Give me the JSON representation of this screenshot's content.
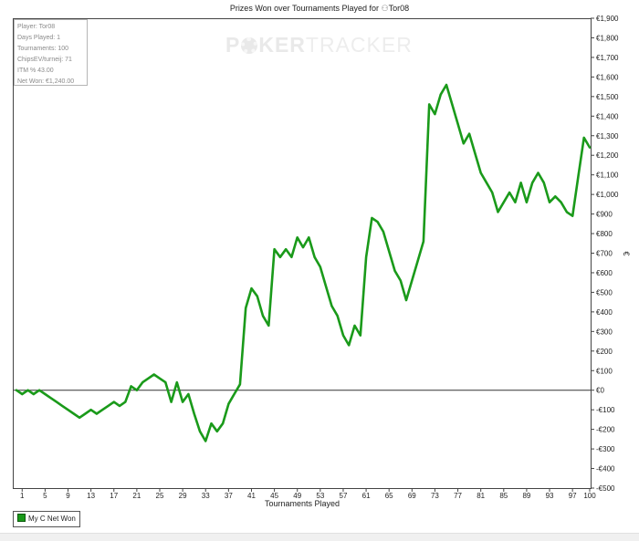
{
  "chart_data": {
    "type": "line",
    "title_prefix": "Prizes Won over Tournaments Played for",
    "title_player": "Tor08",
    "xlabel": "Tournaments Played",
    "ylabel": "€",
    "xlim": [
      0,
      100
    ],
    "ylim": [
      -500,
      1900
    ],
    "x_ticks": [
      1,
      5,
      9,
      13,
      17,
      21,
      25,
      29,
      33,
      37,
      41,
      45,
      49,
      53,
      57,
      61,
      65,
      69,
      73,
      77,
      81,
      85,
      89,
      93,
      97,
      100
    ],
    "y_ticks": [
      -500,
      -400,
      -300,
      -200,
      -100,
      0,
      100,
      200,
      300,
      400,
      500,
      600,
      700,
      800,
      900,
      1000,
      1100,
      1200,
      1300,
      1400,
      1500,
      1600,
      1700,
      1800,
      1900
    ],
    "y_tick_labels": [
      "-€500",
      "-€400",
      "-€300",
      "-€200",
      "-€100",
      "€0",
      "€100",
      "€200",
      "€300",
      "€400",
      "€500",
      "€600",
      "€700",
      "€800",
      "€900",
      "€1,000",
      "€1,100",
      "€1,200",
      "€1,300",
      "€1,400",
      "€1,500",
      "€1,600",
      "€1,700",
      "€1,800",
      "€1,900"
    ],
    "grid": false,
    "zero_line": true,
    "legend_position": "bottom-left",
    "series": [
      {
        "name": "My C Net Won",
        "color": "#1a9a1a",
        "x": [
          0,
          1,
          2,
          3,
          4,
          5,
          6,
          7,
          8,
          9,
          10,
          11,
          12,
          13,
          14,
          15,
          16,
          17,
          18,
          19,
          20,
          21,
          22,
          23,
          24,
          25,
          26,
          27,
          28,
          29,
          30,
          31,
          32,
          33,
          34,
          35,
          36,
          37,
          38,
          39,
          40,
          41,
          42,
          43,
          44,
          45,
          46,
          47,
          48,
          49,
          50,
          51,
          52,
          53,
          54,
          55,
          56,
          57,
          58,
          59,
          60,
          61,
          62,
          63,
          64,
          65,
          66,
          67,
          68,
          69,
          70,
          71,
          72,
          73,
          74,
          75,
          76,
          77,
          78,
          79,
          80,
          81,
          82,
          83,
          84,
          85,
          86,
          87,
          88,
          89,
          90,
          91,
          92,
          93,
          94,
          95,
          96,
          97,
          98,
          99,
          100
        ],
        "values": [
          0,
          -20,
          0,
          -20,
          0,
          -20,
          -40,
          -60,
          -80,
          -100,
          -120,
          -140,
          -120,
          -100,
          -120,
          -100,
          -80,
          -60,
          -80,
          -60,
          20,
          0,
          40,
          60,
          80,
          60,
          40,
          -60,
          40,
          -60,
          -20,
          -120,
          -210,
          -260,
          -170,
          -210,
          -170,
          -70,
          -20,
          30,
          420,
          520,
          480,
          380,
          330,
          720,
          680,
          720,
          680,
          780,
          730,
          780,
          680,
          630,
          530,
          430,
          380,
          280,
          230,
          330,
          280,
          680,
          880,
          860,
          810,
          710,
          610,
          560,
          460,
          560,
          660,
          760,
          1460,
          1410,
          1510,
          1560,
          1460,
          1360,
          1260,
          1310,
          1210,
          1110,
          1060,
          1010,
          910,
          960,
          1010,
          960,
          1060,
          960,
          1060,
          1110,
          1060,
          960,
          990,
          960,
          910,
          890,
          1090,
          1290,
          1240
        ]
      }
    ]
  },
  "stats": {
    "player": "Player: Tor08",
    "days": "Days Played: 1",
    "tournaments": "Tournaments: 100",
    "chipsev": "ChipsEV/turneij: 71",
    "itm": "ITM % 43.00",
    "net_won": "Net Won: €1,240.00"
  },
  "watermark": {
    "part1": "P",
    "part2": "KER",
    "part3": "TRACKER"
  }
}
